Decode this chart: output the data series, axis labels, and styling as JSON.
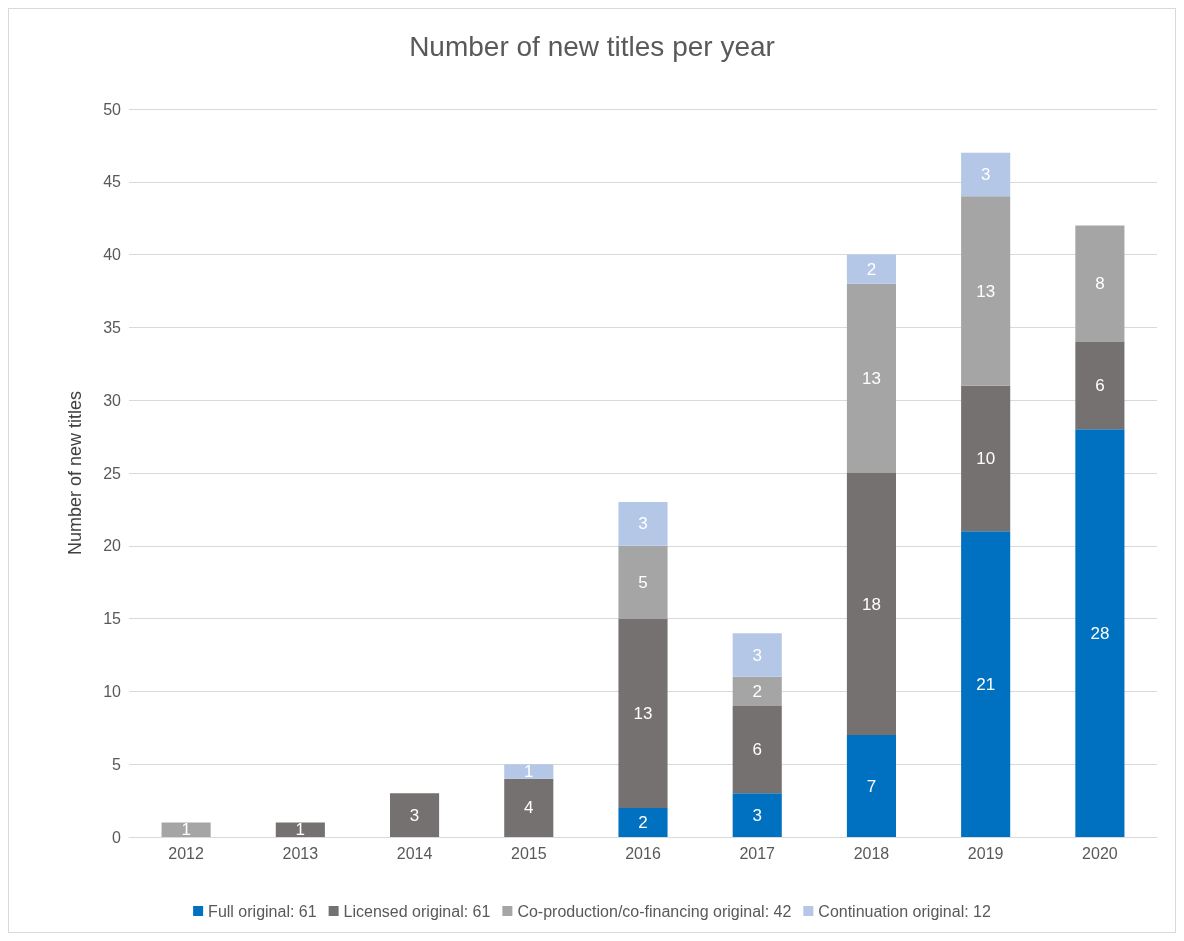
{
  "chart_data": {
    "type": "bar",
    "title": "Number of new titles per year",
    "ylabel": "Number of new titles",
    "categories": [
      "2012",
      "2013",
      "2014",
      "2015",
      "2016",
      "2017",
      "2018",
      "2019",
      "2020"
    ],
    "series": [
      {
        "name": "Full original: 61",
        "color": "#0070c0",
        "values": [
          null,
          null,
          null,
          null,
          2,
          3,
          7,
          21,
          28
        ]
      },
      {
        "name": "Licensed original: 61",
        "color": "#767171",
        "values": [
          null,
          1,
          3,
          4,
          13,
          6,
          18,
          10,
          6
        ]
      },
      {
        "name": "Co-production/co-financing original: 42",
        "color": "#a5a5a5",
        "values": [
          1,
          null,
          null,
          null,
          5,
          2,
          13,
          13,
          8
        ]
      },
      {
        "name": "Continuation original: 12",
        "color": "#b4c7e7",
        "values": [
          null,
          null,
          null,
          1,
          3,
          3,
          2,
          3,
          null
        ]
      }
    ],
    "stacked": true,
    "ylim": [
      0,
      50
    ],
    "yticks": [
      0,
      5,
      10,
      15,
      20,
      25,
      30,
      35,
      40,
      45,
      50
    ],
    "grid": "y",
    "legend": "bottom",
    "data_labels": true
  }
}
